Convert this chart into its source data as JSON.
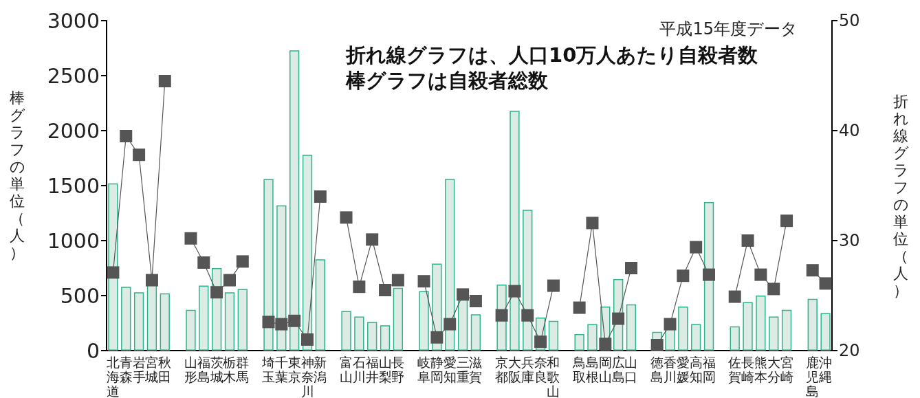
{
  "chart_data": {
    "type": "bar",
    "title": "折れ線グラフは、人口10万人あたり自殺者数",
    "subtitle": "棒グラフは自殺者総数",
    "annotations": [
      "平成15年度データ"
    ],
    "ylabel": "棒グラフの単位（人）",
    "y2label": "折れ線グラフの単位（人）",
    "categories": [
      "北海道",
      "青森",
      "岩手",
      "宮城",
      "秋田",
      null,
      "山形",
      "福島",
      "茨城",
      "栃木",
      "群馬",
      null,
      "埼玉",
      "千葉",
      "東京",
      "神奈川",
      "新潟",
      null,
      "富山",
      "石川",
      "福井",
      "山梨",
      "長野",
      null,
      "岐阜",
      "静岡",
      "愛知",
      "三重",
      "滋賀",
      null,
      "京都",
      "大阪",
      "兵庫",
      "奈良",
      "和歌山",
      null,
      "鳥取",
      "島根",
      "岡山",
      "広島",
      "山口",
      null,
      "徳島",
      "香川",
      "愛媛",
      "高知",
      "福岡",
      null,
      "佐賀",
      "長崎",
      "熊本",
      "大分",
      "宮崎",
      null,
      "鹿児島",
      "沖縄"
    ],
    "series": [
      {
        "color": "#dcebe3",
        "values": [
          1520,
          580,
          530,
          600,
          520,
          null,
          370,
          590,
          750,
          530,
          560,
          null,
          1560,
          1320,
          2730,
          1780,
          830,
          null,
          360,
          310,
          260,
          230,
          570,
          null,
          540,
          790,
          1560,
          470,
          330,
          null,
          600,
          2180,
          1280,
          300,
          270,
          null,
          150,
          240,
          400,
          650,
          420,
          null,
          170,
          210,
          400,
          240,
          1350,
          null,
          220,
          440,
          500,
          310,
          370,
          null,
          470,
          340
        ]
      },
      {
        "type": "line",
        "axis": "y2",
        "color": "#555555",
        "values": [
          27.1,
          39.5,
          37.8,
          26.4,
          44.5,
          null,
          30.2,
          28.0,
          25.3,
          26.4,
          28.1,
          null,
          22.6,
          22.4,
          22.7,
          21.0,
          34.0,
          null,
          32.1,
          25.8,
          30.1,
          25.5,
          26.4,
          null,
          26.3,
          21.2,
          22.4,
          25.1,
          24.5,
          null,
          23.2,
          25.4,
          23.2,
          20.8,
          25.9,
          null,
          23.9,
          31.6,
          20.6,
          22.9,
          27.5,
          null,
          20.5,
          22.4,
          26.8,
          29.4,
          26.9,
          null,
          24.9,
          30.0,
          26.9,
          25.6,
          31.8,
          null,
          27.3,
          26.1
        ]
      }
    ],
    "ylim": [
      0,
      3000
    ],
    "yticks": [
      0,
      500,
      1000,
      1500,
      2000,
      2500,
      3000
    ],
    "y2lim": [
      20,
      50
    ],
    "y2ticks": [
      20,
      30,
      40,
      50
    ],
    "marker": "square",
    "grid": false
  }
}
